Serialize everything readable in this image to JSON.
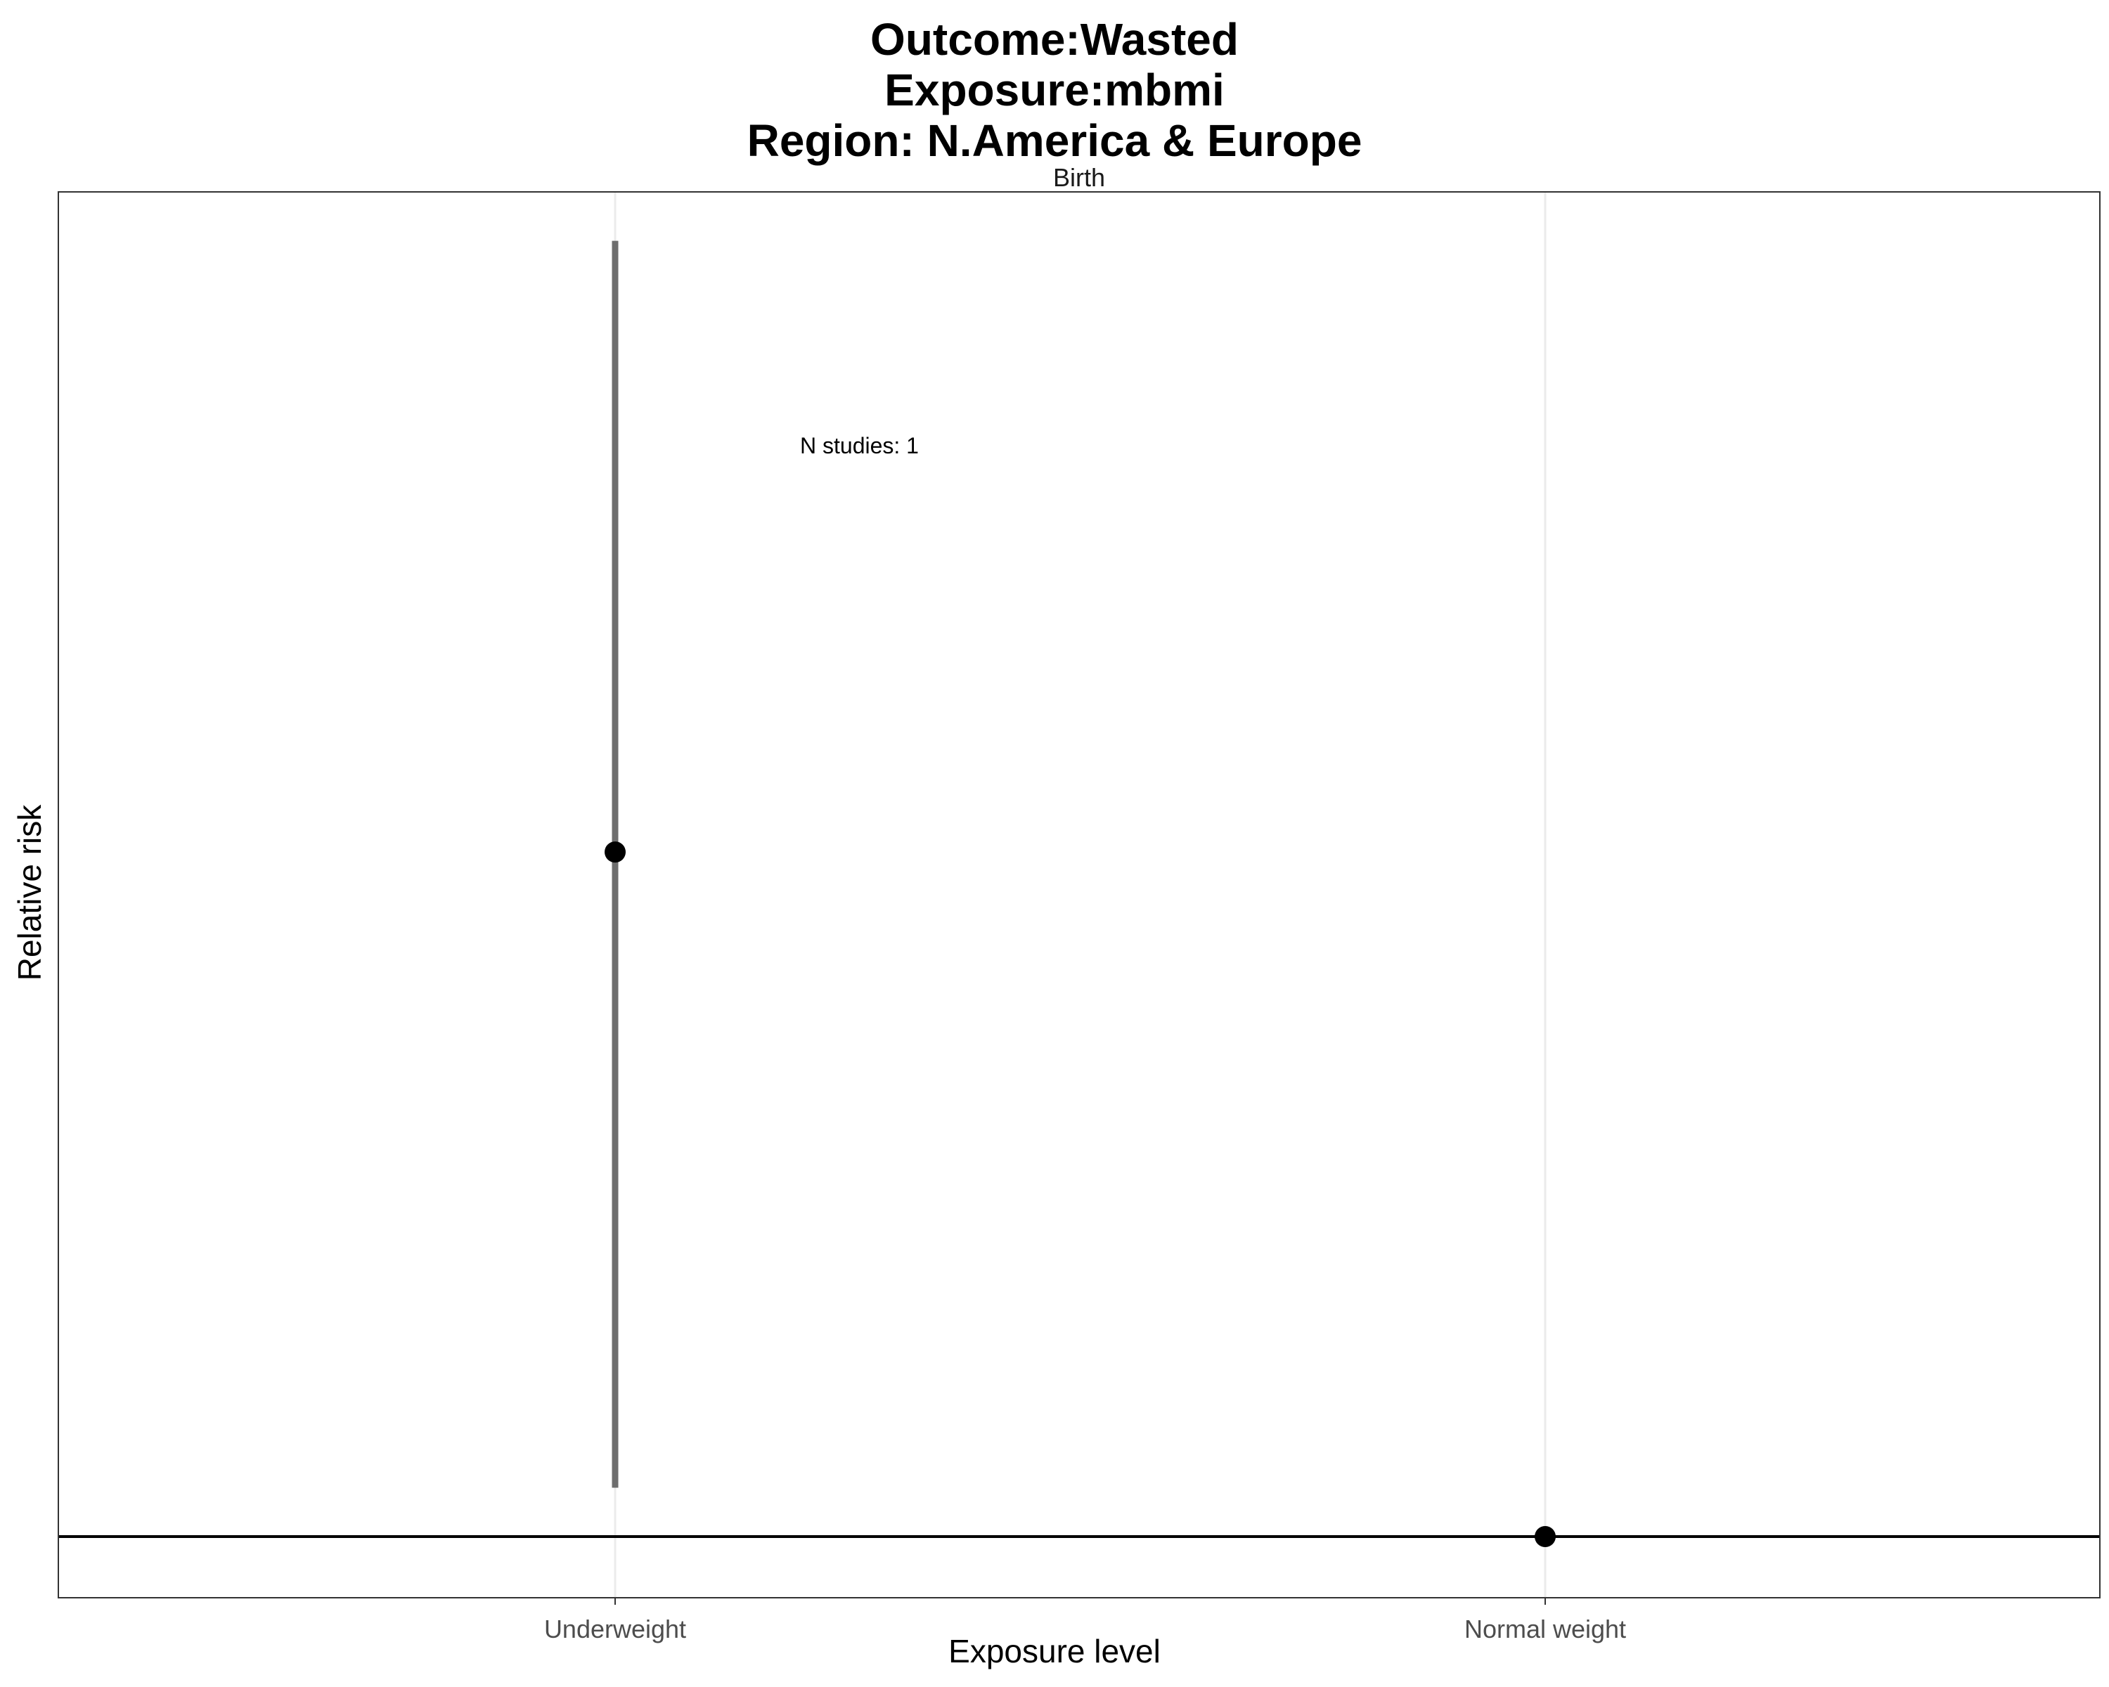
{
  "chart_data": {
    "type": "scatter",
    "title_lines": [
      "Outcome:Wasted",
      "Exposure:mbmi",
      "Region: N.America & Europe"
    ],
    "facet_label": "Birth",
    "xlabel": "Exposure level",
    "ylabel": "Relative risk",
    "categories": [
      "Underweight",
      "Normal weight"
    ],
    "points": [
      {
        "category": "Underweight",
        "estimate": 1.56,
        "ci_lower": 1.04,
        "ci_upper": 2.06
      },
      {
        "category": "Normal weight",
        "estimate": 1.0
      }
    ],
    "reference_line": 1,
    "ylim": [
      0.95,
      2.1
    ],
    "y_ticks_shown": false,
    "annotation": "N studies: 1",
    "grid": true,
    "colors": {
      "point": "#000000",
      "errorbar": "#6e6e6e",
      "reference": "#000000",
      "grid": "#ebebeb",
      "panel_border": "#333333"
    }
  }
}
